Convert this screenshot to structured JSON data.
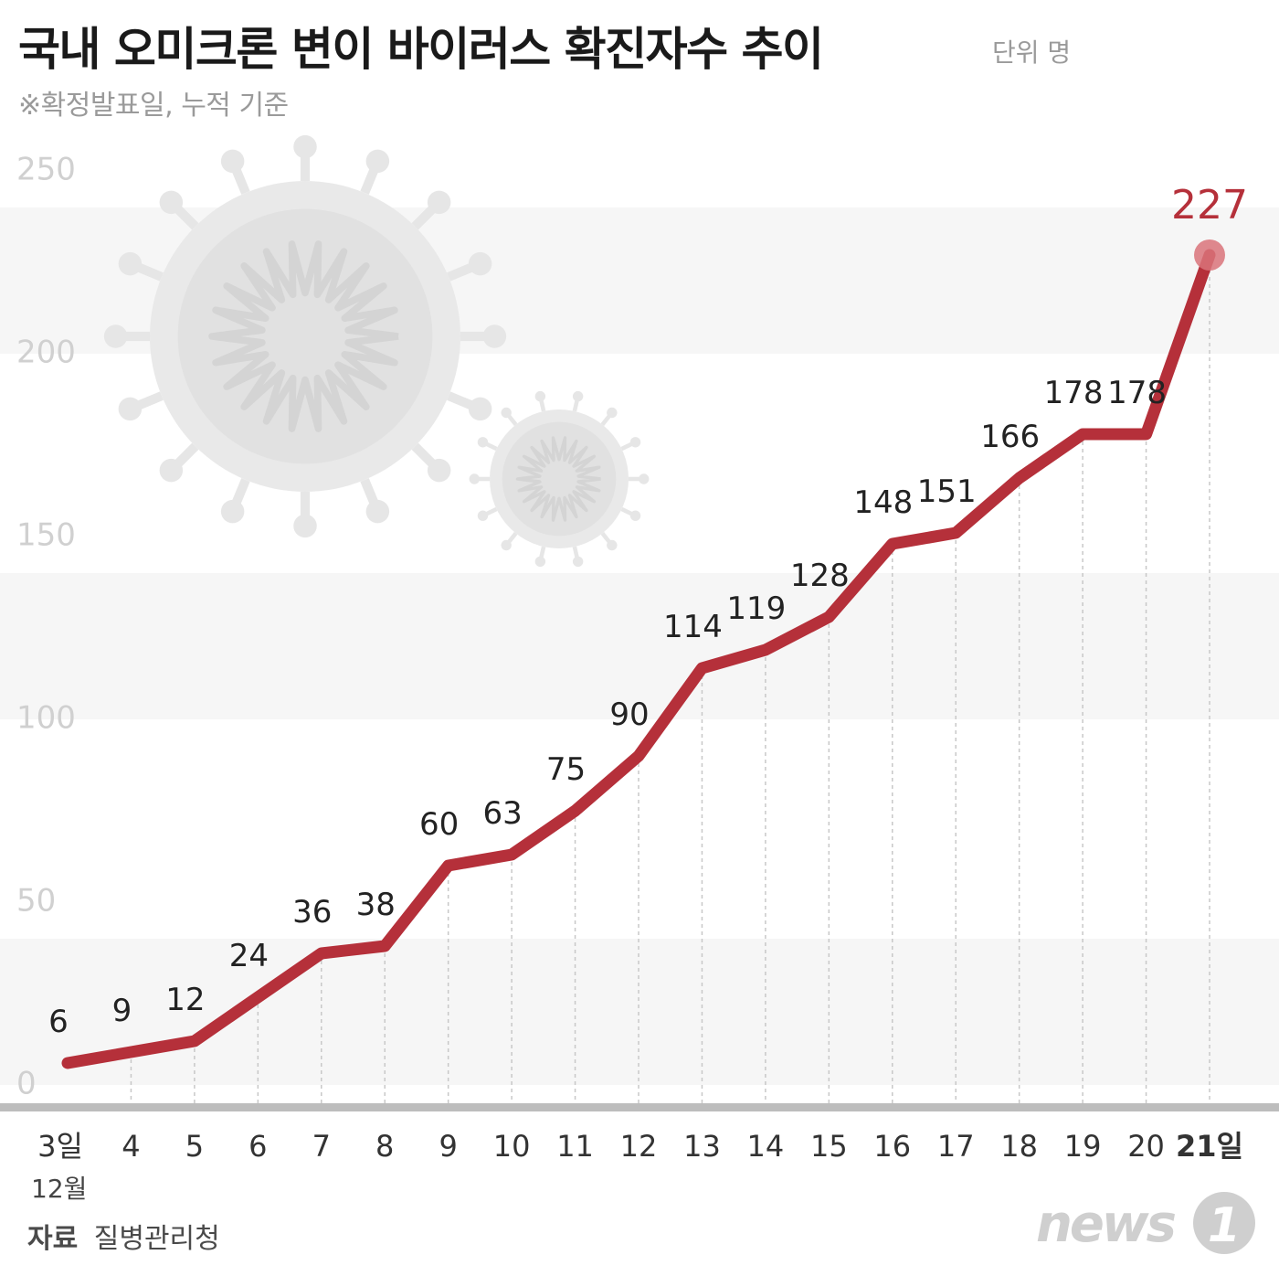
{
  "title": "국내 오미크론 변이 바이러스 확진자수 추이",
  "unit_label": "단위 명",
  "note": "※확정발표일, 누적 기준",
  "source": {
    "key": "자료",
    "value": "질병관리청"
  },
  "logo": {
    "text": "news1",
    "word": "news",
    "digit": "1"
  },
  "colors": {
    "line": "#b5303a",
    "highlight": "#b5303a",
    "axis": "#bdbdbd",
    "tick_text": "#d0d0d0",
    "band": "#f6f6f6",
    "logo": "#cfcfcf"
  },
  "chart_data": {
    "type": "line",
    "title": "국내 오미크론 변이 바이러스 확진자수 추이",
    "ylabel": "단위 명",
    "ylim": [
      0,
      250
    ],
    "yticks": [
      0,
      50,
      100,
      150,
      200,
      250
    ],
    "grid": "alternating horizontal bands",
    "month_label": "12월",
    "categories": [
      "3일",
      "4",
      "5",
      "6",
      "7",
      "8",
      "9",
      "10",
      "11",
      "12",
      "13",
      "14",
      "15",
      "16",
      "17",
      "18",
      "19",
      "20",
      "21일"
    ],
    "values": [
      6,
      9,
      12,
      24,
      36,
      38,
      60,
      63,
      75,
      90,
      114,
      119,
      128,
      148,
      151,
      166,
      178,
      178,
      227
    ],
    "highlight": {
      "category": "21일",
      "value": 227
    },
    "decoration": "virus illustrations"
  }
}
